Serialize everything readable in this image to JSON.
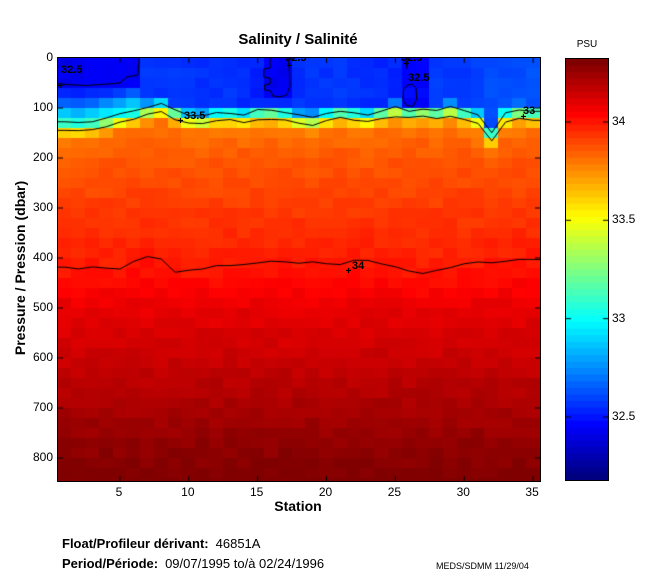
{
  "chart_data": {
    "type": "heatmap",
    "title": "Salinity / Salinité",
    "xlabel": "Station",
    "ylabel": "Pressure / Pression (dbar)",
    "x_range": [
      0.5,
      35.5
    ],
    "y_range_dbar": [
      0,
      846
    ],
    "x_ticks": [
      5,
      10,
      15,
      20,
      25,
      30,
      35
    ],
    "y_ticks": [
      0,
      100,
      200,
      300,
      400,
      500,
      600,
      700,
      800
    ],
    "grid": false,
    "colormap": "jet",
    "colorbar": {
      "label": "PSU",
      "vmin": 32.18,
      "vmax": 34.32,
      "ticks": [
        34,
        33.5,
        33,
        32.5
      ],
      "tick_labels": [
        "34",
        "33.5",
        "33",
        "32.5"
      ]
    },
    "stations": [
      1,
      2,
      3,
      4,
      5,
      6,
      7,
      8,
      9,
      10,
      11,
      12,
      13,
      14,
      15,
      16,
      17,
      18,
      19,
      20,
      21,
      22,
      23,
      24,
      25,
      26,
      27,
      28,
      29,
      30,
      31,
      32,
      33,
      34,
      35
    ],
    "surface_salinity_psu": [
      32.52,
      32.52,
      32.52,
      32.52,
      32.52,
      32.52,
      32.55,
      32.55,
      32.56,
      32.55,
      32.55,
      32.54,
      32.55,
      32.53,
      32.52,
      32.52,
      32.52,
      32.55,
      32.55,
      32.55,
      32.56,
      32.55,
      32.54,
      32.53,
      32.52,
      32.52,
      32.52,
      32.57,
      32.57,
      32.57,
      32.58,
      32.6,
      32.61,
      32.6,
      32.62
    ],
    "halocline_depth_dbar": [
      135,
      138,
      134,
      128,
      122,
      116,
      106,
      100,
      112,
      122,
      124,
      118,
      116,
      120,
      114,
      112,
      116,
      124,
      126,
      118,
      112,
      116,
      120,
      112,
      106,
      112,
      108,
      112,
      106,
      114,
      122,
      155,
      118,
      110,
      114
    ],
    "s34_isohaline_depth_dbar": [
      420,
      420,
      417,
      421,
      419,
      404,
      396,
      404,
      426,
      424,
      420,
      417,
      416,
      414,
      410,
      408,
      409,
      410,
      409,
      410,
      411,
      406,
      405,
      409,
      417,
      428,
      430,
      426,
      418,
      414,
      410,
      408,
      409,
      405,
      400
    ],
    "deep_profile_knots": [
      [
        300,
        33.93
      ],
      [
        500,
        34.1
      ],
      [
        620,
        34.18
      ],
      [
        720,
        34.25
      ],
      [
        846,
        34.33
      ]
    ],
    "fresh_patches": [
      {
        "salinity_psu": 32.42,
        "stations": [
          1,
          6
        ],
        "pressure_dbar": [
          0,
          50
        ]
      },
      {
        "salinity_psu": 32.42,
        "stations": [
          16,
          17
        ],
        "pressure_dbar": [
          0,
          76
        ]
      },
      {
        "salinity_psu": 32.45,
        "stations": [
          26,
          27
        ],
        "pressure_dbar": [
          0,
          96
        ]
      }
    ],
    "contour_levels": [
      32.5,
      33,
      33.5,
      34
    ],
    "contour_outlines_32_5": [
      {
        "points": [
          [
            0.5,
            52
          ],
          [
            2.5,
            55
          ],
          [
            4.2,
            52
          ],
          [
            5.0,
            50
          ],
          [
            5.5,
            38
          ],
          [
            6.3,
            34
          ],
          [
            6.35,
            16
          ],
          [
            6.4,
            0
          ]
        ]
      },
      {
        "points": [
          [
            15.9,
            0
          ],
          [
            15.9,
            20
          ],
          [
            15.45,
            22
          ],
          [
            15.45,
            38
          ],
          [
            15.9,
            40
          ],
          [
            15.9,
            52
          ],
          [
            15.5,
            54
          ],
          [
            15.5,
            64
          ],
          [
            15.95,
            66
          ],
          [
            16.1,
            76
          ],
          [
            16.6,
            78
          ],
          [
            17.1,
            74
          ],
          [
            17.35,
            56
          ],
          [
            17.3,
            24
          ],
          [
            17.2,
            0
          ]
        ]
      },
      {
        "points": [
          [
            25.85,
            0
          ],
          [
            25.85,
            22
          ]
        ]
      },
      {
        "points": [
          [
            25.9,
            54
          ],
          [
            25.6,
            62
          ],
          [
            25.55,
            84
          ],
          [
            25.85,
            96
          ],
          [
            26.3,
            96
          ],
          [
            26.55,
            82
          ],
          [
            26.5,
            60
          ],
          [
            26.2,
            52
          ],
          [
            25.9,
            54
          ]
        ]
      }
    ],
    "contour_labels": [
      {
        "text": "32.5",
        "station": 0.72,
        "dbar": 12
      },
      {
        "text": "32.5",
        "station": 16.99,
        "dbar": -12
      },
      {
        "text": "32.5",
        "station": 25.4,
        "dbar": -12
      },
      {
        "text": "32.5",
        "station": 25.92,
        "dbar": 28
      },
      {
        "text": "33.5",
        "station": 9.65,
        "dbar": 104
      },
      {
        "text": "33",
        "station": 34.27,
        "dbar": 94
      },
      {
        "text": "34",
        "station": 21.85,
        "dbar": 404
      }
    ],
    "label_markers": [
      [
        0.65,
        56
      ],
      [
        17.3,
        16
      ],
      [
        25.8,
        12
      ],
      [
        9.4,
        126
      ],
      [
        34.3,
        118
      ],
      [
        21.6,
        426
      ]
    ]
  },
  "footer": {
    "float_label": "Float/Profileur dérivant:",
    "float_value": "46851A",
    "period_label": "Period/Période:",
    "period_value": "09/07/1995  to/à  02/24/1996",
    "credit": "MEDS/SDMM  11/29/04"
  }
}
